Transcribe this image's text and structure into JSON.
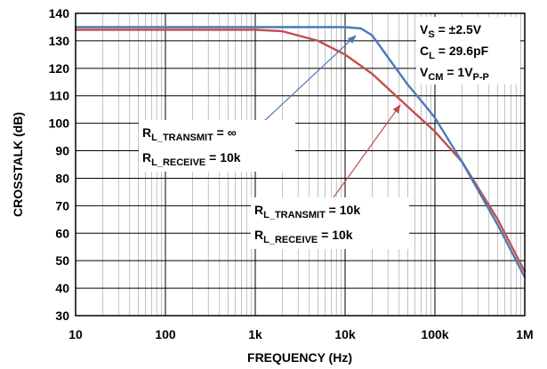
{
  "chart_data": {
    "type": "line",
    "xlabel": "FREQUENCY (Hz)",
    "ylabel": "CROSSTALK (dB)",
    "x_scale": "log",
    "xlim": [
      10,
      1000000
    ],
    "ylim": [
      30,
      140
    ],
    "grid": true,
    "x_ticks": [
      {
        "value": 10,
        "label": "10"
      },
      {
        "value": 100,
        "label": "100"
      },
      {
        "value": 1000,
        "label": "1k"
      },
      {
        "value": 10000,
        "label": "10k"
      },
      {
        "value": 100000,
        "label": "100k"
      },
      {
        "value": 1000000,
        "label": "1M"
      }
    ],
    "y_ticks": [
      {
        "value": 30,
        "label": "30"
      },
      {
        "value": 40,
        "label": "40"
      },
      {
        "value": 50,
        "label": "50"
      },
      {
        "value": 60,
        "label": "60"
      },
      {
        "value": 70,
        "label": "70"
      },
      {
        "value": 80,
        "label": "80"
      },
      {
        "value": 90,
        "label": "90"
      },
      {
        "value": 100,
        "label": "100"
      },
      {
        "value": 110,
        "label": "110"
      },
      {
        "value": 120,
        "label": "120"
      },
      {
        "value": 130,
        "label": "130"
      },
      {
        "value": 140,
        "label": "140"
      }
    ],
    "series": [
      {
        "color": "#4a7ab8",
        "x": [
          10,
          100,
          1000,
          5000,
          10000,
          15000,
          20000,
          30000,
          50000,
          80000,
          100000,
          200000,
          500000,
          1000000
        ],
        "y": [
          135,
          135,
          135,
          135,
          135,
          134.5,
          132,
          124,
          114,
          106,
          102,
          86,
          63,
          44
        ]
      },
      {
        "color": "#c0504d",
        "x": [
          10,
          100,
          1000,
          2000,
          5000,
          10000,
          20000,
          50000,
          100000,
          200000,
          500000,
          1000000
        ],
        "y": [
          134,
          134,
          134,
          133.5,
          130,
          125,
          118,
          106,
          97,
          86,
          65,
          46
        ]
      }
    ],
    "annotations": {
      "conditions": {
        "vs": {
          "main": "V",
          "sub": "S",
          "rest": " = ±2.5V"
        },
        "cl": {
          "main": "C",
          "sub": "L",
          "rest": " = 29.6pF"
        },
        "vcm": {
          "main": "V",
          "sub": "CM",
          "mid": " = 1V",
          "sub2": "P-P"
        }
      },
      "blue_label": {
        "line1": {
          "main": "R",
          "sub": "L_TRANSMIT",
          "rest": " = ∞"
        },
        "line2": {
          "main": "R",
          "sub": "L_RECEIVE",
          "rest": " = 10k"
        }
      },
      "red_label": {
        "line1": {
          "main": "R",
          "sub": "L_TRANSMIT",
          "rest": " = 10k"
        },
        "line2": {
          "main": "R",
          "sub": "L_RECEIVE",
          "rest": " = 10k"
        }
      }
    }
  }
}
